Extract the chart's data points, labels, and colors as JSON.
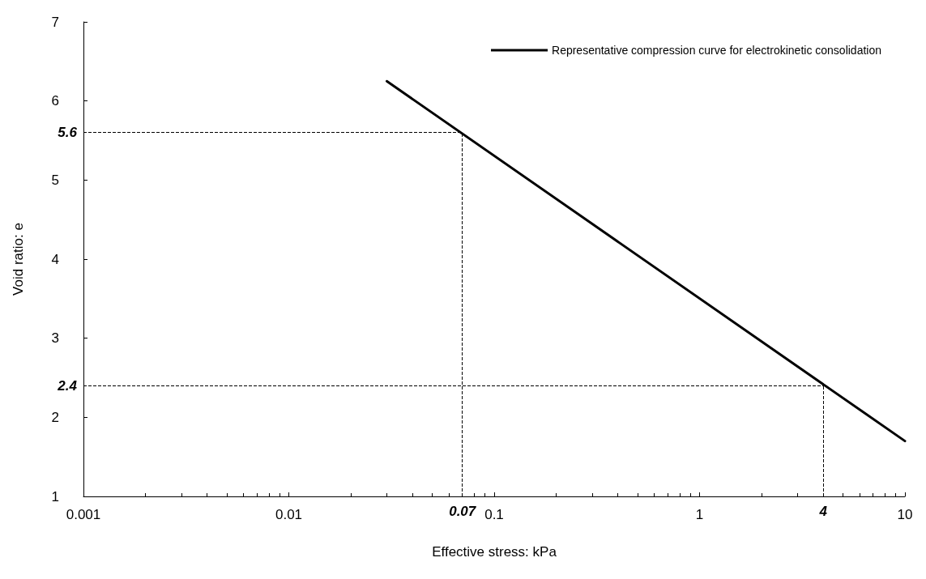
{
  "chart_data": {
    "type": "line",
    "xlabel": "Effective stress: kPa",
    "ylabel": "Void ratio: e",
    "log": "x",
    "xlim": [
      0.001,
      10
    ],
    "xticks": [
      0.001,
      0.01,
      0.1,
      1,
      10
    ],
    "ylim": [
      1,
      7
    ],
    "yticks": [
      1,
      2,
      3,
      4,
      5,
      6,
      7
    ],
    "grid": false,
    "legend": "top right",
    "marker": "none",
    "line_style": "solid",
    "series": [
      {
        "name": "Representative compression curve for electrokinetic consolidation",
        "color": "#000000",
        "x": [
          0.03,
          10
        ],
        "values": [
          6.25,
          1.7
        ]
      }
    ],
    "ref_lines": [
      {
        "axis": "y",
        "value": 5.6,
        "label": "5.6",
        "line_style": "dashed",
        "color": "#000000"
      },
      {
        "axis": "y",
        "value": 2.4,
        "label": "2.4",
        "line_style": "dashed",
        "color": "#000000"
      },
      {
        "axis": "x",
        "value": 0.07,
        "label": "0.07",
        "line_style": "dashed",
        "color": "#000000"
      },
      {
        "axis": "x",
        "value": 4,
        "label": "4",
        "line_style": "dashed",
        "color": "#000000"
      }
    ]
  }
}
